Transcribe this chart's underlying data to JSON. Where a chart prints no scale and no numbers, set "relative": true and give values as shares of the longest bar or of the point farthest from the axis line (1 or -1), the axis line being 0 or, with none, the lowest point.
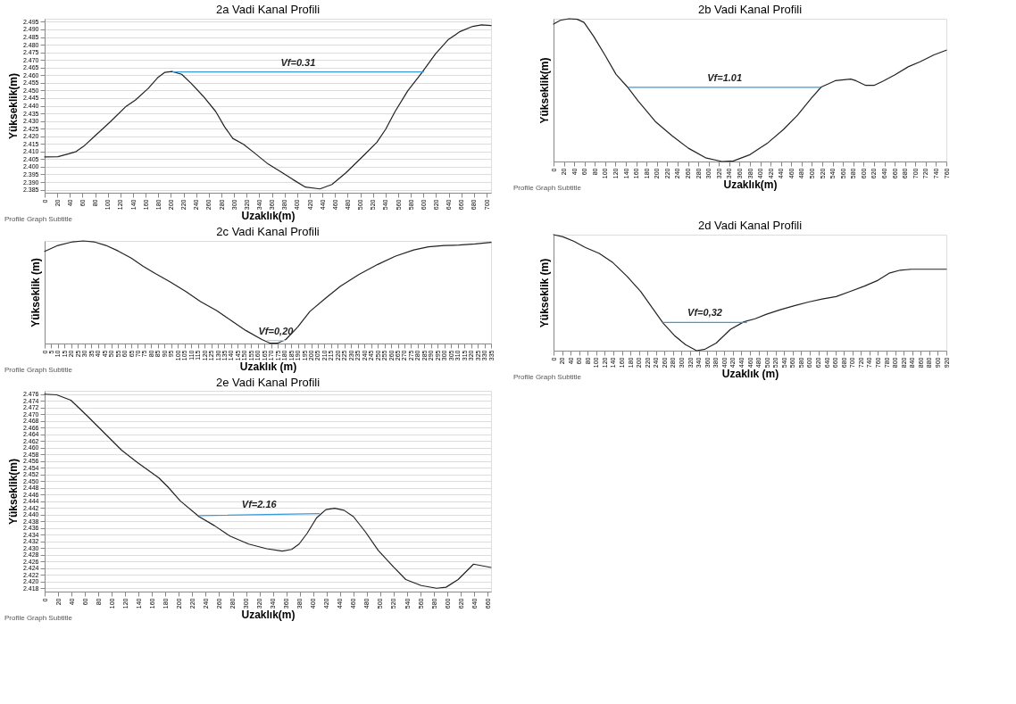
{
  "chart_data": [
    {
      "type": "line",
      "title": "2a Vadi Kanal Profili",
      "xlabel": "Uzaklık(m)",
      "ylabel": "Yükseklik(m)",
      "grid": "y",
      "xlim": [
        0,
        707
      ],
      "xticks": [
        0,
        20,
        40,
        60,
        80,
        100,
        120,
        140,
        160,
        180,
        200,
        220,
        240,
        260,
        280,
        300,
        320,
        340,
        360,
        380,
        400,
        420,
        440,
        460,
        480,
        500,
        520,
        540,
        560,
        580,
        600,
        620,
        640,
        660,
        680,
        700
      ],
      "ylim": [
        2.383,
        2.497
      ],
      "yticks": [
        2.385,
        {
          "value": 2.39,
          "label": "2.390"
        },
        2.395,
        {
          "value": 2.4,
          "label": "2.400"
        },
        2.405,
        {
          "value": 2.41,
          "label": "2.410"
        },
        2.415,
        {
          "value": 2.42,
          "label": "2.420"
        },
        2.425,
        {
          "value": 2.43,
          "label": "2.430"
        },
        2.435,
        {
          "value": 2.44,
          "label": "2.440"
        },
        2.445,
        {
          "value": 2.45,
          "label": "2.450"
        },
        2.455,
        {
          "value": 2.46,
          "label": "2.460"
        },
        2.465,
        {
          "value": 2.47,
          "label": "2.470"
        },
        2.475,
        {
          "value": 2.48,
          "label": "2.480"
        },
        2.485,
        {
          "value": 2.49,
          "label": "2.490"
        },
        2.495
      ],
      "series": [
        {
          "color": "#222222",
          "x": [
            0,
            21,
            38,
            50,
            62,
            79,
            104,
            129,
            144,
            164,
            179,
            190,
            202,
            217,
            232,
            251,
            271,
            285,
            298,
            315,
            334,
            354,
            374,
            393,
            413,
            436,
            455,
            477,
            506,
            526,
            540,
            555,
            575,
            597,
            619,
            639,
            658,
            678,
            692,
            707
          ],
          "values": [
            2.4065,
            2.4066,
            2.4085,
            2.41,
            2.4135,
            2.42,
            2.4295,
            2.4396,
            2.4438,
            2.4513,
            2.4584,
            2.4618,
            2.4624,
            2.4606,
            2.4547,
            2.4463,
            2.4362,
            2.4262,
            2.4186,
            2.4147,
            2.4085,
            2.4018,
            2.3968,
            2.3917,
            2.3867,
            2.3855,
            2.3884,
            2.396,
            2.4077,
            2.416,
            2.4245,
            2.4362,
            2.4497,
            2.4614,
            2.474,
            2.4832,
            2.4886,
            2.492,
            2.493,
            2.4925
          ]
        },
        {
          "color": "#3a9ad9",
          "x": [
            203,
            600
          ],
          "values": [
            2.4621,
            2.4621
          ]
        }
      ],
      "annotations": [
        "Vf=0.31",
        "Profile Graph Subtitle"
      ]
    },
    {
      "type": "line",
      "title": "2b Vadi Kanal Profili",
      "xlabel": "Uzaklık(m)",
      "ylabel": "Yükseklik(m)",
      "relative": true,
      "xlim": [
        0,
        760
      ],
      "xticks": [
        0,
        20,
        40,
        60,
        80,
        100,
        120,
        140,
        160,
        180,
        200,
        220,
        240,
        260,
        280,
        300,
        320,
        340,
        360,
        380,
        400,
        420,
        440,
        460,
        480,
        500,
        520,
        540,
        560,
        580,
        600,
        620,
        640,
        660,
        680,
        700,
        720,
        740,
        760
      ],
      "series": [
        {
          "color": "#222222",
          "x": [
            0,
            13,
            30,
            46,
            59,
            78,
            100,
            121,
            143,
            164,
            197,
            229,
            261,
            294,
            326,
            348,
            380,
            413,
            445,
            472,
            499,
            518,
            545,
            575,
            585,
            604,
            620,
            639,
            660,
            687,
            709,
            736,
            760
          ],
          "values": [
            0.963,
            0.989,
            1.0,
            0.996,
            0.974,
            0.874,
            0.742,
            0.61,
            0.522,
            0.423,
            0.28,
            0.181,
            0.093,
            0.026,
            0.0,
            0.004,
            0.048,
            0.126,
            0.225,
            0.324,
            0.445,
            0.522,
            0.566,
            0.577,
            0.566,
            0.533,
            0.533,
            0.566,
            0.606,
            0.665,
            0.698,
            0.747,
            0.78
          ]
        },
        {
          "color": "#3a9ad9",
          "x": [
            146,
            516
          ],
          "values": [
            0.52,
            0.52
          ]
        }
      ],
      "annotations": [
        "Vf=1.01",
        "Profile Graph Subtitle"
      ]
    },
    {
      "type": "line",
      "title": "2c Vadi Kanal Profili",
      "xlabel": "Uzaklık (m)",
      "ylabel": "Yükseklik (m)",
      "relative": true,
      "xlim": [
        0,
        335
      ],
      "xticks": [
        0,
        5,
        10,
        15,
        20,
        25,
        30,
        35,
        40,
        45,
        50,
        55,
        60,
        65,
        70,
        75,
        80,
        85,
        90,
        95,
        100,
        105,
        110,
        115,
        120,
        125,
        130,
        135,
        140,
        145,
        150,
        155,
        160,
        165,
        170,
        175,
        180,
        185,
        190,
        195,
        200,
        205,
        210,
        215,
        220,
        225,
        230,
        235,
        240,
        245,
        250,
        255,
        260,
        265,
        270,
        275,
        280,
        285,
        290,
        295,
        300,
        305,
        310,
        315,
        320,
        325,
        330,
        335
      ],
      "series": [
        {
          "color": "#222222",
          "x": [
            0,
            10,
            21,
            29,
            37,
            46,
            55,
            65,
            74,
            83,
            94,
            106,
            117,
            129,
            140,
            151,
            163,
            169,
            175,
            181,
            190,
            199,
            211,
            222,
            236,
            250,
            263,
            277,
            288,
            300,
            311,
            323,
            335
          ],
          "values": [
            0.898,
            0.956,
            0.991,
            1.0,
            0.991,
            0.956,
            0.903,
            0.832,
            0.753,
            0.683,
            0.603,
            0.506,
            0.409,
            0.321,
            0.224,
            0.127,
            0.039,
            0.004,
            0.004,
            0.039,
            0.162,
            0.312,
            0.444,
            0.559,
            0.674,
            0.771,
            0.85,
            0.912,
            0.942,
            0.956,
            0.959,
            0.97,
            0.986
          ]
        },
        {
          "color": "#a8d4f0",
          "x": [
            167,
            180
          ],
          "values": [
            0.03,
            0.03
          ]
        }
      ],
      "annotations": [
        "Vf=0,20",
        "Profile Graph Subtitle"
      ]
    },
    {
      "type": "line",
      "title": "2d Vadi Kanal Profili",
      "xlabel": "Uzaklık (m)",
      "ylabel": "Yükseklik (m)",
      "relative": true,
      "xlim": [
        0,
        920
      ],
      "xticks": [
        0,
        20,
        40,
        60,
        80,
        100,
        120,
        140,
        160,
        180,
        200,
        220,
        240,
        260,
        280,
        300,
        320,
        340,
        360,
        380,
        400,
        420,
        440,
        460,
        480,
        500,
        520,
        540,
        560,
        580,
        600,
        620,
        640,
        660,
        680,
        700,
        720,
        740,
        760,
        780,
        800,
        820,
        840,
        860,
        880,
        900,
        920
      ],
      "series": [
        {
          "color": "#222222",
          "x": [
            0,
            22,
            48,
            74,
            107,
            139,
            172,
            204,
            237,
            257,
            283,
            309,
            335,
            355,
            381,
            414,
            446,
            472,
            499,
            531,
            564,
            597,
            629,
            662,
            694,
            727,
            760,
            786,
            812,
            839,
            878,
            920
          ],
          "values": [
            1.0,
            0.982,
            0.942,
            0.89,
            0.838,
            0.759,
            0.641,
            0.51,
            0.34,
            0.236,
            0.131,
            0.052,
            0.0,
            0.013,
            0.065,
            0.183,
            0.249,
            0.275,
            0.314,
            0.353,
            0.387,
            0.419,
            0.445,
            0.466,
            0.51,
            0.555,
            0.607,
            0.668,
            0.694,
            0.702,
            0.702,
            0.702
          ]
        },
        {
          "color": "#3a9ad9",
          "x": [
            257,
            452
          ],
          "values": [
            0.243,
            0.243
          ]
        }
      ],
      "annotations": [
        "Vf=0,32",
        "Profile Graph Subtitle"
      ]
    },
    {
      "type": "line",
      "title": "2e Vadi Kanal Profili",
      "xlabel": "Uzaklık(m)",
      "ylabel": "Yükseklik(m)",
      "grid": "y",
      "xlim": [
        0,
        665
      ],
      "xticks": [
        0,
        20,
        40,
        60,
        80,
        100,
        120,
        140,
        160,
        180,
        200,
        220,
        240,
        260,
        280,
        300,
        320,
        340,
        360,
        380,
        400,
        420,
        440,
        460,
        480,
        500,
        520,
        540,
        560,
        580,
        600,
        620,
        640,
        660
      ],
      "ylim": [
        2.417,
        2.477
      ],
      "yticks": [
        2.418,
        {
          "value": 2.42,
          "label": "2.420"
        },
        2.422,
        2.424,
        2.426,
        2.428,
        {
          "value": 2.43,
          "label": "2.430"
        },
        2.432,
        2.434,
        2.436,
        2.438,
        {
          "value": 2.44,
          "label": "2.440"
        },
        2.442,
        2.444,
        2.446,
        2.448,
        {
          "value": 2.45,
          "label": "2.450"
        },
        2.452,
        2.454,
        2.456,
        2.458,
        {
          "value": 2.46,
          "label": "2.460"
        },
        2.462,
        2.464,
        2.466,
        2.468,
        {
          "value": 2.47,
          "label": "2.470"
        },
        2.472,
        2.474,
        2.476
      ],
      "series": [
        {
          "color": "#222222",
          "x": [
            0,
            18,
            39,
            64,
            92,
            115,
            138,
            170,
            184,
            202,
            230,
            253,
            276,
            304,
            331,
            354,
            368,
            379,
            391,
            405,
            419,
            432,
            446,
            460,
            478,
            497,
            520,
            538,
            561,
            584,
            598,
            616,
            639,
            665
          ],
          "values": [
            2.476,
            2.4758,
            2.4742,
            2.4694,
            2.4638,
            2.4592,
            2.4556,
            2.451,
            2.4482,
            2.4441,
            2.4394,
            2.4367,
            2.4336,
            2.4312,
            2.4298,
            2.4291,
            2.4296,
            2.4312,
            2.4344,
            2.439,
            2.4415,
            2.4419,
            2.4413,
            2.4394,
            2.4348,
            2.4293,
            2.4243,
            2.4206,
            2.4188,
            2.418,
            2.4183,
            2.4206,
            2.4252,
            2.4242
          ]
        },
        {
          "color": "#3a9ad9",
          "x": [
            230,
            409
          ],
          "values": [
            2.4397,
            2.4403
          ]
        }
      ],
      "annotations": [
        "Vf=2.16",
        "Profile Graph Subtitle"
      ]
    }
  ]
}
